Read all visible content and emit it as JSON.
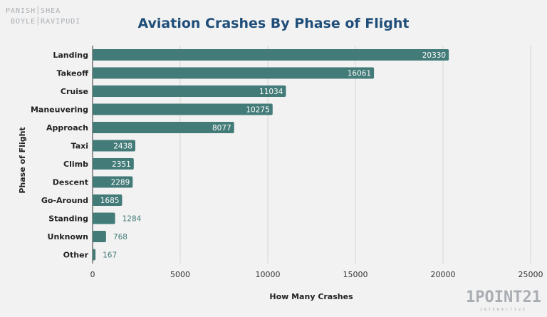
{
  "logos": {
    "top_left": "PANISH | SHEA / BOYLE | RAVIPUDI LLP",
    "bottom_right": "1POINT21",
    "bottom_right_sub": "INTERACTIVE"
  },
  "chart_data": {
    "type": "bar",
    "orientation": "horizontal",
    "title": "Aviation Crashes By Phase of Flight",
    "xlabel": "How Many Crashes",
    "ylabel": "Phase of Flight",
    "categories": [
      "Landing",
      "Takeoff",
      "Cruise",
      "Maneuvering",
      "Approach",
      "Taxi",
      "Climb",
      "Descent",
      "Go-Around",
      "Standing",
      "Unknown",
      "Other"
    ],
    "values": [
      20330,
      16061,
      11034,
      10275,
      8077,
      2438,
      2351,
      2289,
      1685,
      1284,
      768,
      167
    ],
    "xlim": [
      0,
      25000
    ],
    "xticks": [
      0,
      5000,
      10000,
      15000,
      20000,
      25000
    ],
    "grid": true,
    "bar_color": "#437b78",
    "label_color_inside": "#ffffff",
    "label_color_outside": "#437b78"
  }
}
